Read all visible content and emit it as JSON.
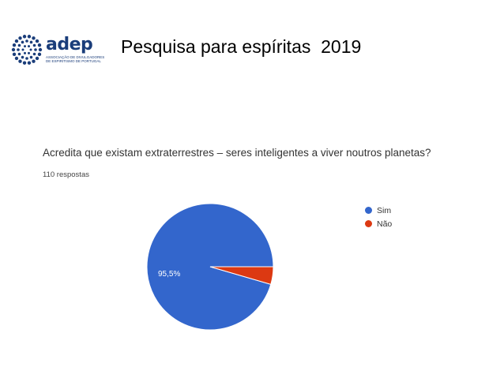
{
  "header": {
    "logo_name": "adep",
    "logo_subtitle": "ASSOCIAÇÃO DE DIVULGADORES DE ESPIRITISMO DE PORTUGAL",
    "title": "Pesquisa para espíritas  2019"
  },
  "colors": {
    "logo": "#1a3d7a",
    "sim": "#3366cc",
    "nao": "#dc3912"
  },
  "chart_data": {
    "type": "pie",
    "title": "Acredita que existam extraterrestres – seres inteligentes a viver noutros planetas?",
    "subtitle": "110 respostas",
    "legend_position": "right",
    "series": [
      {
        "name": "Sim",
        "value": 95.5,
        "label": "95,5%",
        "color": "#3366cc"
      },
      {
        "name": "Não",
        "value": 4.5,
        "label": "",
        "color": "#dc3912"
      }
    ]
  }
}
